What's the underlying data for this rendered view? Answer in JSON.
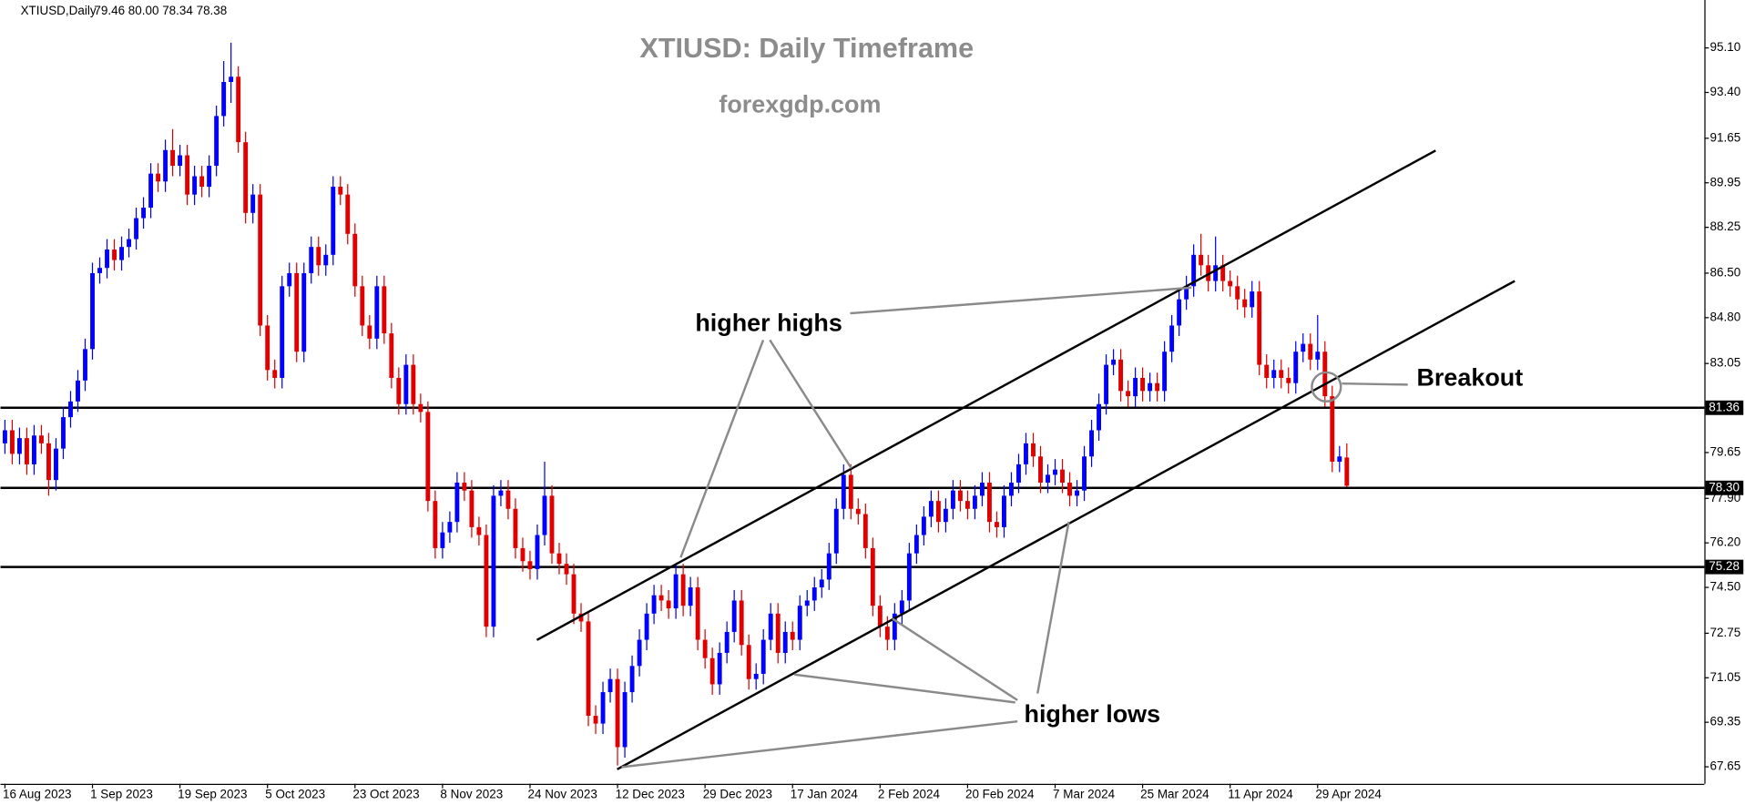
{
  "chart_data": {
    "type": "candlestick",
    "header_symbol": "XTIUSD,Daily",
    "header_values": "79.46 80.00 78.34 78.38",
    "title": "XTIUSD: Daily Timeframe",
    "subtitle": "forexgdp.com",
    "annotations": {
      "higher_highs": "higher highs",
      "higher_lows": "higher lows",
      "breakout": "Breakout"
    },
    "up_color": "#0000ff",
    "down_color": "#e00000",
    "level_color": "#000000",
    "categories": [
      "16 Aug 2023",
      null,
      null,
      null,
      null,
      null,
      null,
      null,
      null,
      null,
      null,
      null,
      "1 Sep 2023",
      null,
      null,
      null,
      null,
      null,
      null,
      null,
      null,
      null,
      null,
      null,
      "19 Sep 2023",
      null,
      null,
      null,
      null,
      null,
      null,
      null,
      null,
      null,
      null,
      null,
      "5 Oct 2023",
      null,
      null,
      null,
      null,
      null,
      null,
      null,
      null,
      null,
      null,
      null,
      "23 Oct 2023",
      null,
      null,
      null,
      null,
      null,
      null,
      null,
      null,
      null,
      null,
      null,
      "8 Nov 2023",
      null,
      null,
      null,
      null,
      null,
      null,
      null,
      null,
      null,
      null,
      null,
      "24 Nov 2023",
      null,
      null,
      null,
      null,
      null,
      null,
      null,
      null,
      null,
      null,
      null,
      "12 Dec 2023",
      null,
      null,
      null,
      null,
      null,
      null,
      null,
      null,
      null,
      null,
      null,
      "29 Dec 2023",
      null,
      null,
      null,
      null,
      null,
      null,
      null,
      null,
      null,
      null,
      null,
      "17 Jan 2024",
      null,
      null,
      null,
      null,
      null,
      null,
      null,
      null,
      null,
      null,
      null,
      "2 Feb 2024",
      null,
      null,
      null,
      null,
      null,
      null,
      null,
      null,
      null,
      null,
      null,
      "20 Feb 2024",
      null,
      null,
      null,
      null,
      null,
      null,
      null,
      null,
      null,
      null,
      null,
      "7 Mar 2024",
      null,
      null,
      null,
      null,
      null,
      null,
      null,
      null,
      null,
      null,
      null,
      "25 Mar 2024",
      null,
      null,
      null,
      null,
      null,
      null,
      null,
      null,
      null,
      null,
      null,
      "11 Apr 2024",
      null,
      null,
      null,
      null,
      null,
      null,
      null,
      null,
      null,
      null,
      null,
      "29 Apr 2024",
      null,
      null,
      null,
      null
    ],
    "open": [
      80.0,
      80.5,
      79.6,
      80.2,
      79.2,
      80.3,
      80.0,
      78.6,
      79.8,
      81.0,
      81.6,
      82.4,
      83.6,
      86.5,
      86.7,
      87.4,
      87.0,
      87.5,
      87.8,
      88.6,
      89.0,
      90.3,
      90.0,
      91.2,
      90.6,
      91.0,
      89.5,
      90.2,
      89.8,
      90.6,
      92.5,
      93.8,
      94.0,
      91.5,
      88.8,
      89.5,
      84.5,
      82.8,
      82.5,
      86.0,
      86.5,
      83.5,
      86.5,
      87.5,
      86.8,
      87.2,
      89.8,
      89.5,
      88.0,
      86.0,
      84.5,
      84.0,
      86.0,
      84.2,
      82.5,
      81.5,
      83.0,
      81.5,
      81.2,
      77.8,
      76.0,
      76.6,
      77.0,
      78.5,
      78.2,
      76.8,
      76.5,
      73.0,
      78.0,
      78.2,
      77.5,
      76.0,
      75.5,
      75.2,
      76.5,
      78.0,
      75.8,
      75.4,
      75.0,
      73.5,
      73.2,
      69.6,
      69.3,
      70.5,
      71.0,
      68.4,
      70.5,
      71.5,
      72.5,
      73.5,
      74.2,
      74.0,
      73.7,
      75.0,
      73.8,
      74.5,
      72.5,
      71.8,
      70.8,
      72.0,
      72.8,
      74.0,
      72.3,
      71.0,
      71.2,
      72.5,
      73.5,
      72.0,
      72.8,
      72.5,
      73.8,
      74.0,
      74.5,
      74.8,
      75.8,
      77.5,
      78.8,
      77.5,
      77.3,
      76.0,
      73.8,
      73.0,
      72.5,
      73.5,
      74.0,
      75.8,
      76.5,
      77.2,
      77.8,
      77.0,
      77.5,
      78.2,
      77.8,
      77.5,
      78.0,
      78.5,
      77.0,
      76.8,
      78.0,
      78.5,
      79.2,
      80.0,
      79.5,
      78.5,
      78.8,
      79.0,
      78.5,
      78.0,
      78.2,
      79.5,
      80.5,
      81.5,
      83.0,
      83.2,
      82.0,
      81.8,
      82.5,
      82.0,
      82.3,
      82.0,
      83.5,
      84.5,
      85.5,
      86.0,
      87.2,
      86.8,
      86.2,
      86.8,
      86.2,
      86.0,
      85.5,
      85.2,
      85.8,
      83.0,
      82.5,
      82.8,
      82.5,
      82.3,
      83.5,
      83.8,
      83.2,
      83.5,
      81.8,
      79.3,
      79.46
    ],
    "high": [
      80.9,
      80.9,
      80.6,
      80.6,
      80.7,
      80.7,
      80.4,
      80.2,
      81.4,
      82.0,
      82.8,
      84.0,
      86.9,
      87.1,
      87.8,
      87.8,
      87.9,
      88.2,
      89.0,
      89.4,
      90.7,
      90.7,
      91.6,
      92.0,
      91.4,
      91.4,
      90.6,
      90.6,
      91.0,
      92.9,
      94.6,
      95.3,
      94.4,
      91.9,
      89.9,
      89.9,
      84.9,
      83.2,
      86.4,
      86.9,
      86.9,
      86.9,
      87.9,
      87.9,
      87.6,
      90.2,
      90.2,
      89.9,
      88.4,
      86.4,
      84.9,
      86.4,
      86.4,
      84.6,
      82.9,
      83.4,
      83.4,
      81.9,
      81.6,
      78.2,
      77.0,
      77.4,
      78.9,
      78.9,
      78.6,
      77.2,
      76.9,
      78.4,
      78.6,
      78.6,
      77.9,
      76.4,
      75.9,
      76.9,
      79.3,
      78.4,
      76.2,
      75.8,
      75.4,
      73.9,
      73.6,
      70.0,
      70.9,
      71.4,
      71.4,
      70.9,
      71.9,
      72.9,
      73.9,
      74.6,
      74.6,
      74.4,
      75.4,
      75.4,
      74.9,
      74.9,
      72.9,
      72.2,
      72.4,
      73.2,
      74.4,
      74.4,
      72.7,
      71.6,
      72.9,
      73.9,
      73.9,
      73.2,
      73.2,
      74.2,
      74.4,
      74.9,
      75.2,
      76.2,
      77.9,
      79.2,
      79.2,
      77.9,
      77.7,
      76.4,
      74.2,
      73.4,
      73.9,
      74.4,
      76.2,
      76.9,
      77.6,
      78.2,
      78.2,
      77.9,
      78.6,
      78.6,
      78.2,
      78.4,
      78.9,
      78.9,
      77.4,
      78.4,
      78.9,
      79.6,
      80.4,
      80.4,
      79.9,
      79.2,
      79.4,
      79.4,
      78.9,
      78.6,
      79.9,
      80.9,
      81.9,
      83.4,
      83.6,
      83.6,
      82.4,
      82.9,
      82.9,
      82.7,
      82.7,
      83.9,
      84.9,
      85.9,
      86.4,
      87.6,
      88.0,
      87.2,
      87.9,
      87.2,
      86.6,
      86.4,
      85.9,
      86.2,
      86.2,
      83.4,
      83.2,
      83.2,
      82.9,
      83.9,
      84.2,
      84.2,
      84.9,
      83.9,
      82.2,
      79.9,
      80.0
    ],
    "low": [
      79.6,
      79.2,
      79.2,
      78.8,
      78.8,
      79.6,
      78.0,
      78.2,
      79.4,
      80.6,
      81.2,
      82.0,
      83.2,
      86.1,
      86.3,
      86.6,
      86.6,
      87.1,
      87.4,
      88.2,
      88.6,
      89.6,
      89.6,
      90.2,
      90.2,
      89.1,
      89.1,
      89.4,
      89.4,
      90.2,
      92.1,
      93.0,
      91.1,
      88.4,
      88.4,
      84.1,
      82.4,
      82.1,
      82.1,
      85.6,
      83.1,
      83.1,
      86.1,
      86.4,
      86.4,
      86.8,
      89.1,
      87.6,
      85.6,
      84.1,
      83.6,
      83.6,
      83.8,
      82.1,
      81.1,
      81.1,
      81.1,
      80.8,
      77.4,
      75.6,
      75.6,
      76.2,
      76.6,
      77.8,
      76.4,
      76.1,
      72.6,
      72.6,
      77.6,
      77.1,
      75.6,
      75.1,
      74.8,
      74.8,
      76.1,
      75.4,
      75.0,
      74.6,
      73.1,
      72.8,
      69.2,
      68.9,
      68.9,
      70.1,
      67.7,
      68.0,
      70.1,
      71.1,
      72.1,
      73.1,
      73.6,
      73.3,
      73.3,
      73.4,
      73.4,
      72.1,
      71.4,
      70.4,
      70.4,
      71.6,
      72.4,
      71.9,
      70.6,
      70.6,
      70.8,
      72.1,
      71.6,
      71.6,
      72.1,
      72.1,
      73.4,
      73.6,
      74.1,
      74.4,
      75.4,
      77.1,
      77.1,
      76.9,
      75.6,
      73.4,
      72.6,
      72.1,
      72.1,
      73.1,
      73.6,
      75.4,
      76.1,
      76.8,
      76.6,
      76.6,
      77.1,
      77.4,
      77.1,
      77.1,
      77.6,
      76.6,
      76.4,
      76.4,
      77.6,
      78.1,
      78.8,
      79.1,
      78.1,
      78.1,
      78.4,
      78.1,
      77.6,
      77.6,
      77.8,
      79.1,
      80.1,
      81.1,
      82.6,
      81.6,
      81.4,
      81.4,
      81.6,
      81.6,
      81.6,
      81.6,
      83.1,
      84.1,
      85.1,
      85.6,
      86.4,
      85.8,
      85.8,
      85.8,
      85.6,
      85.1,
      84.8,
      84.8,
      82.6,
      82.1,
      82.1,
      82.1,
      81.9,
      81.9,
      83.1,
      82.8,
      82.8,
      81.4,
      78.9,
      78.9,
      78.34
    ],
    "close": [
      80.5,
      79.6,
      80.2,
      79.2,
      80.3,
      80.0,
      78.6,
      79.8,
      81.0,
      81.6,
      82.4,
      83.6,
      86.5,
      86.7,
      87.4,
      87.0,
      87.5,
      87.8,
      88.6,
      89.0,
      90.3,
      90.0,
      91.2,
      90.6,
      91.0,
      89.5,
      90.2,
      89.8,
      90.6,
      92.5,
      93.8,
      94.0,
      91.5,
      88.8,
      89.5,
      84.5,
      82.8,
      82.5,
      86.0,
      86.5,
      83.5,
      86.5,
      87.5,
      86.8,
      87.2,
      89.8,
      89.5,
      88.0,
      86.0,
      84.5,
      84.0,
      86.0,
      84.2,
      82.5,
      81.5,
      83.0,
      81.5,
      81.2,
      77.8,
      76.0,
      76.6,
      77.0,
      78.5,
      78.2,
      76.8,
      76.5,
      73.0,
      78.0,
      78.2,
      77.5,
      76.0,
      75.5,
      75.2,
      76.5,
      78.0,
      75.8,
      75.4,
      75.0,
      73.5,
      73.2,
      69.6,
      69.3,
      70.5,
      71.0,
      68.4,
      70.5,
      71.5,
      72.5,
      73.5,
      74.2,
      74.0,
      73.7,
      75.0,
      73.8,
      74.5,
      72.5,
      71.8,
      70.8,
      72.0,
      72.8,
      74.0,
      72.3,
      71.0,
      71.2,
      72.5,
      73.5,
      72.0,
      72.8,
      72.5,
      73.8,
      74.0,
      74.5,
      74.8,
      75.8,
      77.5,
      78.8,
      77.5,
      77.3,
      76.0,
      73.8,
      73.0,
      72.5,
      73.5,
      74.0,
      75.8,
      76.5,
      77.2,
      77.8,
      77.0,
      77.5,
      78.2,
      77.8,
      77.5,
      78.0,
      78.5,
      77.0,
      76.8,
      78.0,
      78.5,
      79.2,
      80.0,
      79.5,
      78.5,
      78.8,
      79.0,
      78.5,
      78.0,
      78.2,
      79.5,
      80.5,
      81.5,
      83.0,
      83.2,
      82.0,
      81.8,
      82.5,
      82.0,
      82.3,
      82.0,
      83.5,
      84.5,
      85.5,
      86.0,
      87.2,
      86.8,
      86.2,
      86.8,
      86.2,
      86.0,
      85.5,
      85.2,
      85.8,
      83.0,
      82.5,
      82.8,
      82.5,
      82.3,
      83.5,
      83.8,
      83.2,
      83.5,
      81.8,
      79.3,
      79.5,
      78.38
    ],
    "ylim": [
      67.0,
      96.93
    ],
    "yticks": [
      {
        "value": 95.1,
        "label": "95.10"
      },
      {
        "value": 93.4,
        "label": "93.40"
      },
      91.65,
      89.95,
      88.25,
      {
        "value": 86.5,
        "label": "86.50"
      },
      {
        "value": 84.8,
        "label": "84.80"
      },
      83.05,
      79.65,
      {
        "value": 77.9,
        "label": "77.90"
      },
      {
        "value": 76.2,
        "label": "76.20"
      },
      {
        "value": 74.5,
        "label": "74.50"
      },
      72.75,
      71.05,
      69.35,
      67.65
    ],
    "levels": [
      81.36,
      {
        "value": 78.3,
        "label": "78.30"
      },
      75.28
    ]
  }
}
